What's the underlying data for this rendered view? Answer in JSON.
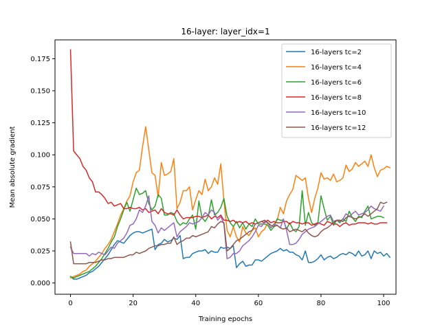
{
  "chart_data": {
    "type": "line",
    "title": "16-layer: layer_idx=1",
    "xlabel": "Training epochs",
    "ylabel": "Mean absolute gradient",
    "xlim": [
      -4.95,
      103.95
    ],
    "ylim": [
      -0.0088,
      0.1897
    ],
    "xticks": [
      0,
      20,
      40,
      60,
      80,
      100
    ],
    "yticks": [
      0.0,
      0.025,
      0.05,
      0.075,
      0.1,
      0.125,
      0.15,
      0.175
    ],
    "xtick_labels": [
      "0",
      "20",
      "40",
      "60",
      "80",
      "100"
    ],
    "ytick_labels": [
      "0.000",
      "0.025",
      "0.050",
      "0.075",
      "0.100",
      "0.125",
      "0.150",
      "0.175"
    ],
    "grid": false,
    "legend_position": "top-right",
    "x_start": 0,
    "x_step": 1,
    "series": [
      {
        "name": "16-layers tc=2",
        "color": "#1f77b4",
        "values": [
          0.005,
          0.003,
          0.003,
          0.004,
          0.005,
          0.006,
          0.008,
          0.009,
          0.011,
          0.013,
          0.016,
          0.019,
          0.022,
          0.026,
          0.03,
          0.033,
          0.032,
          0.031,
          0.034,
          0.037,
          0.039,
          0.04,
          0.04,
          0.039,
          0.04,
          0.041,
          0.042,
          0.026,
          0.03,
          0.031,
          0.034,
          0.032,
          0.033,
          0.035,
          0.034,
          0.037,
          0.019,
          0.02,
          0.02,
          0.023,
          0.024,
          0.025,
          0.025,
          0.026,
          0.023,
          0.025,
          0.024,
          0.024,
          0.028,
          0.027,
          0.028,
          0.027,
          0.029,
          0.012,
          0.015,
          0.017,
          0.013,
          0.014,
          0.014,
          0.018,
          0.018,
          0.017,
          0.019,
          0.021,
          0.023,
          0.024,
          0.025,
          0.027,
          0.025,
          0.026,
          0.024,
          0.024,
          0.022,
          0.021,
          0.018,
          0.025,
          0.016,
          0.016,
          0.017,
          0.019,
          0.022,
          0.018,
          0.02,
          0.021,
          0.019,
          0.02,
          0.022,
          0.023,
          0.022,
          0.024,
          0.023,
          0.021,
          0.025,
          0.021,
          0.022,
          0.025,
          0.019,
          0.025,
          0.023,
          0.024,
          0.021,
          0.023,
          0.02
        ]
      },
      {
        "name": "16-layers tc=4",
        "color": "#ff7f0e",
        "values": [
          0.004,
          0.005,
          0.006,
          0.007,
          0.009,
          0.01,
          0.013,
          0.015,
          0.017,
          0.02,
          0.023,
          0.027,
          0.03,
          0.034,
          0.04,
          0.046,
          0.053,
          0.058,
          0.064,
          0.068,
          0.079,
          0.086,
          0.088,
          0.106,
          0.122,
          0.104,
          0.086,
          0.084,
          0.067,
          0.094,
          0.084,
          0.085,
          0.087,
          0.097,
          0.058,
          0.063,
          0.072,
          0.072,
          0.075,
          0.057,
          0.065,
          0.072,
          0.069,
          0.081,
          0.072,
          0.075,
          0.082,
          0.077,
          0.093,
          0.064,
          0.041,
          0.036,
          0.044,
          0.036,
          0.032,
          0.044,
          0.039,
          0.037,
          0.041,
          0.043,
          0.036,
          0.04,
          0.042,
          0.047,
          0.043,
          0.046,
          0.049,
          0.059,
          0.054,
          0.064,
          0.069,
          0.073,
          0.084,
          0.082,
          0.08,
          0.082,
          0.066,
          0.055,
          0.066,
          0.074,
          0.086,
          0.081,
          0.082,
          0.08,
          0.085,
          0.079,
          0.08,
          0.082,
          0.092,
          0.087,
          0.089,
          0.094,
          0.091,
          0.093,
          0.095,
          0.091,
          0.1,
          0.09,
          0.083,
          0.088,
          0.089,
          0.091,
          0.09
        ]
      },
      {
        "name": "16-layers tc=6",
        "color": "#2ca02c",
        "values": [
          0.005,
          0.004,
          0.005,
          0.006,
          0.007,
          0.008,
          0.009,
          0.011,
          0.013,
          0.016,
          0.019,
          0.023,
          0.027,
          0.032,
          0.036,
          0.044,
          0.05,
          0.057,
          0.063,
          0.056,
          0.065,
          0.074,
          0.069,
          0.07,
          0.072,
          0.062,
          0.057,
          0.06,
          0.069,
          0.066,
          0.053,
          0.053,
          0.055,
          0.054,
          0.048,
          0.045,
          0.047,
          0.046,
          0.05,
          0.053,
          0.042,
          0.064,
          0.051,
          0.048,
          0.052,
          0.065,
          0.053,
          0.055,
          0.059,
          0.066,
          0.052,
          0.047,
          0.044,
          0.048,
          0.043,
          0.047,
          0.042,
          0.046,
          0.044,
          0.05,
          0.046,
          0.046,
          0.046,
          0.045,
          0.041,
          0.044,
          0.05,
          0.049,
          0.049,
          0.042,
          0.047,
          0.042,
          0.04,
          0.044,
          0.072,
          0.045,
          0.055,
          0.047,
          0.045,
          0.047,
          0.068,
          0.058,
          0.049,
          0.052,
          0.045,
          0.049,
          0.047,
          0.05,
          0.048,
          0.056,
          0.051,
          0.048,
          0.052,
          0.051,
          0.056,
          0.06,
          0.05,
          0.051,
          0.052,
          0.052,
          0.051
        ]
      },
      {
        "name": "16-layers tc=8",
        "color": "#d62728",
        "values": [
          0.182,
          0.103,
          0.1,
          0.097,
          0.091,
          0.088,
          0.082,
          0.079,
          0.071,
          0.071,
          0.069,
          0.066,
          0.062,
          0.063,
          0.06,
          0.061,
          0.062,
          0.058,
          0.058,
          0.059,
          0.058,
          0.058,
          0.059,
          0.057,
          0.058,
          0.055,
          0.056,
          0.057,
          0.054,
          0.058,
          0.055,
          0.054,
          0.054,
          0.053,
          0.057,
          0.053,
          0.05,
          0.051,
          0.051,
          0.051,
          0.052,
          0.052,
          0.051,
          0.052,
          0.053,
          0.05,
          0.052,
          0.051,
          0.053,
          0.049,
          0.049,
          0.048,
          0.049,
          0.047,
          0.048,
          0.047,
          0.048,
          0.046,
          0.047,
          0.046,
          0.047,
          0.048,
          0.047,
          0.049,
          0.047,
          0.048,
          0.047,
          0.047,
          0.048,
          0.048,
          0.046,
          0.048,
          0.047,
          0.047,
          0.046,
          0.047,
          0.047,
          0.045,
          0.046,
          0.047,
          0.046,
          0.045,
          0.048,
          0.047,
          0.046,
          0.046,
          0.044,
          0.046,
          0.047,
          0.045,
          0.046,
          0.046,
          0.047,
          0.047,
          0.047,
          0.046,
          0.047,
          0.046,
          0.046,
          0.047,
          0.047,
          0.047
        ]
      },
      {
        "name": "16-layers tc=10",
        "color": "#9467bd",
        "values": [
          0.028,
          0.023,
          0.023,
          0.023,
          0.023,
          0.023,
          0.021,
          0.023,
          0.022,
          0.024,
          0.023,
          0.022,
          0.025,
          0.028,
          0.027,
          0.031,
          0.033,
          0.035,
          0.039,
          0.045,
          0.046,
          0.05,
          0.057,
          0.055,
          0.06,
          0.068,
          0.048,
          0.045,
          0.039,
          0.043,
          0.041,
          0.043,
          0.045,
          0.047,
          0.036,
          0.04,
          0.042,
          0.044,
          0.047,
          0.046,
          0.047,
          0.048,
          0.051,
          0.055,
          0.053,
          0.057,
          0.055,
          0.049,
          0.052,
          0.046,
          0.019,
          0.02,
          0.023,
          0.023,
          0.025,
          0.029,
          0.031,
          0.033,
          0.036,
          0.04,
          0.045,
          0.044,
          0.048,
          0.047,
          0.043,
          0.046,
          0.045,
          0.043,
          0.05,
          0.041,
          0.03,
          0.03,
          0.031,
          0.034,
          0.038,
          0.04,
          0.042,
          0.043,
          0.044,
          0.046,
          0.048,
          0.05,
          0.052,
          0.053,
          0.048,
          0.049,
          0.048,
          0.05,
          0.054,
          0.052,
          0.054,
          0.056,
          0.053,
          0.054,
          0.055,
          0.057,
          0.06,
          0.058,
          0.057,
          0.056,
          0.06
        ]
      },
      {
        "name": "16-layers tc=12",
        "color": "#8c564b",
        "values": [
          0.032,
          0.015,
          0.015,
          0.015,
          0.015,
          0.015,
          0.016,
          0.016,
          0.016,
          0.017,
          0.018,
          0.018,
          0.019,
          0.019,
          0.02,
          0.02,
          0.02,
          0.02,
          0.021,
          0.022,
          0.022,
          0.024,
          0.023,
          0.024,
          0.025,
          0.027,
          0.028,
          0.029,
          0.029,
          0.03,
          0.03,
          0.031,
          0.031,
          0.036,
          0.03,
          0.032,
          0.033,
          0.035,
          0.035,
          0.037,
          0.036,
          0.037,
          0.038,
          0.039,
          0.04,
          0.044,
          0.043,
          0.046,
          0.048,
          0.047,
          0.025,
          0.027,
          0.03,
          0.033,
          0.034,
          0.036,
          0.038,
          0.04,
          0.041,
          0.046,
          0.047,
          0.048,
          0.049,
          0.047,
          0.045,
          0.044,
          0.045,
          0.043,
          0.042,
          0.043,
          0.04,
          0.041,
          0.042,
          0.041,
          0.04,
          0.042,
          0.039,
          0.037,
          0.036,
          0.037,
          0.04,
          0.042,
          0.043,
          0.045,
          0.047,
          0.049,
          0.049,
          0.048,
          0.051,
          0.052,
          0.051,
          0.05,
          0.051,
          0.052,
          0.054,
          0.052,
          0.054,
          0.056,
          0.058,
          0.063,
          0.062,
          0.063
        ]
      }
    ]
  }
}
